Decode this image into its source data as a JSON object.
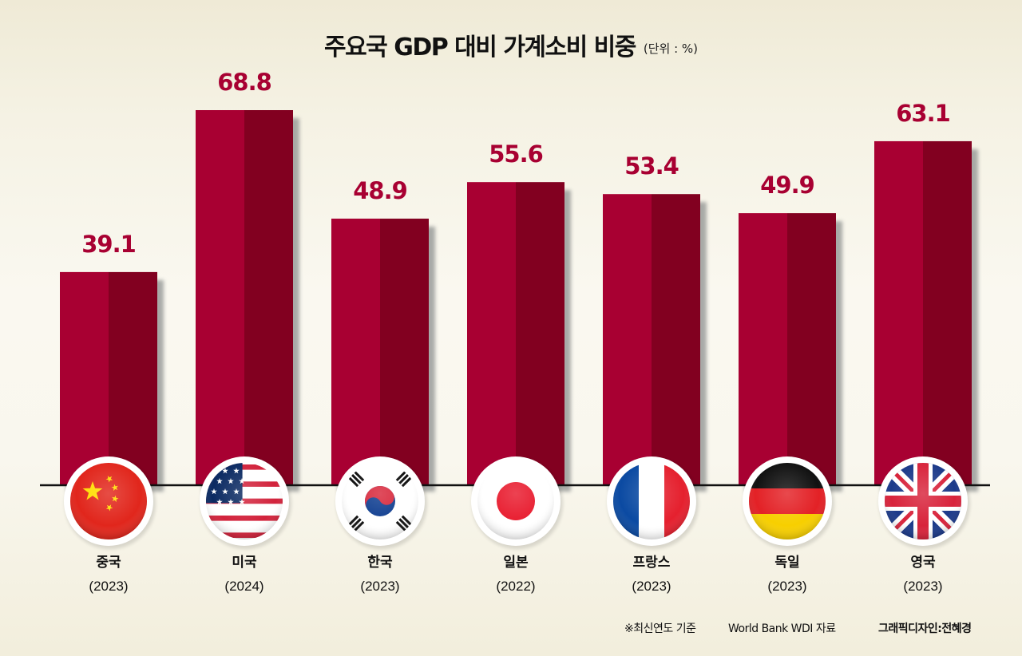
{
  "header": {
    "title": "주요국 GDP 대비 가계소비 비중",
    "unit": "(단위 : %)"
  },
  "footer": {
    "note": "※최신연도 기준",
    "source": "World Bank WDI 자료",
    "credit": "그래픽디자인:전혜경"
  },
  "colors": {
    "bar_light": "#a80032",
    "bar_dark": "#820020",
    "shadow": "#8e9190",
    "label": "#a80032"
  },
  "chart_data": {
    "type": "bar",
    "title": "주요국 GDP 대비 가계소비 비중",
    "unit": "(단위 : %)",
    "xlabel": "",
    "ylabel": "",
    "ylim": [
      0,
      80
    ],
    "grid": false,
    "legend": "none",
    "categories": [
      {
        "name": "중국",
        "year": "(2023)",
        "flag": "china-flag"
      },
      {
        "name": "미국",
        "year": "(2024)",
        "flag": "usa-flag"
      },
      {
        "name": "한국",
        "year": "(2023)",
        "flag": "korea-flag"
      },
      {
        "name": "일본",
        "year": "(2022)",
        "flag": "japan-flag"
      },
      {
        "name": "프랑스",
        "year": "(2023)",
        "flag": "france-flag"
      },
      {
        "name": "독일",
        "year": "(2023)",
        "flag": "germany-flag"
      },
      {
        "name": "영국",
        "year": "(2023)",
        "flag": "uk-flag"
      }
    ],
    "values": [
      39.1,
      68.8,
      48.9,
      55.6,
      53.4,
      49.9,
      63.1
    ],
    "value_labels": [
      "39.1",
      "68.8",
      "48.9",
      "55.6",
      "53.4",
      "49.9",
      "63.1"
    ]
  }
}
